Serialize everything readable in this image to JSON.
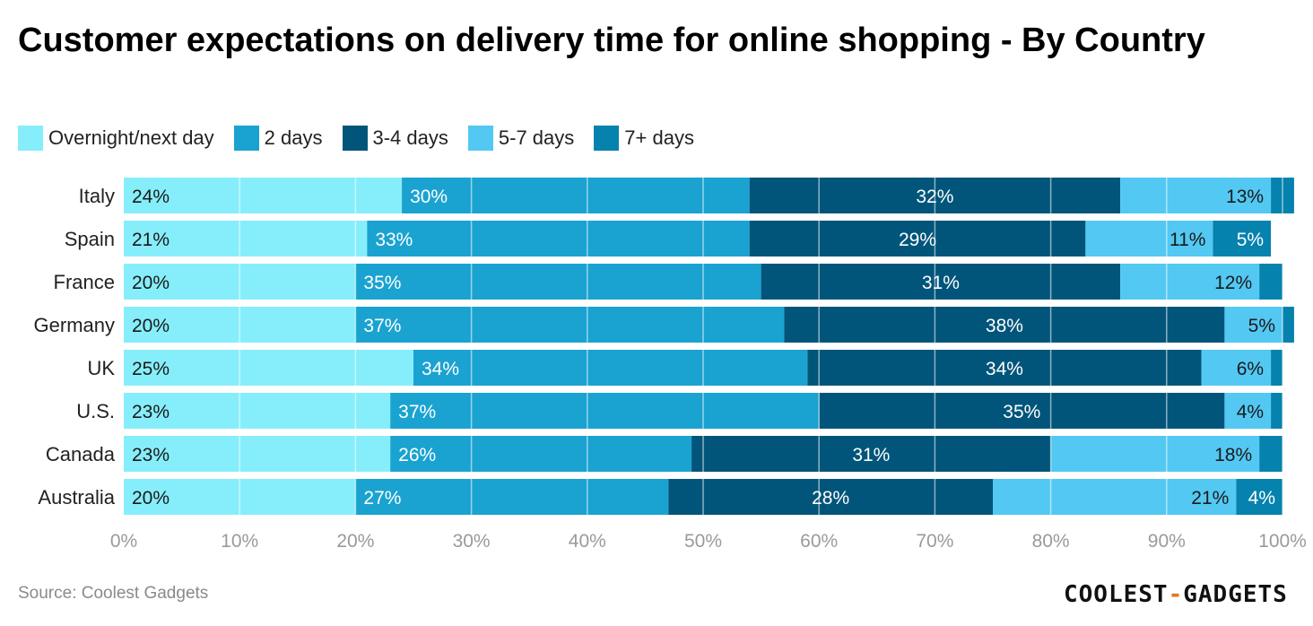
{
  "title": "Customer expectations on delivery time for online shopping - By Country",
  "source": "Source: Coolest Gadgets",
  "brand": {
    "left": "COOLEST",
    "sep": "-",
    "right": "GADGETS"
  },
  "colors": {
    "Overnight/next day": "#86eefb",
    "2 days": "#1aa3d1",
    "3-4 days": "#02557a",
    "5-7 days": "#53c8f3",
    "7+ days": "#0682ae",
    "grid": "#ffffff",
    "tick_label": "#9a9a9a"
  },
  "chart_data": {
    "type": "bar",
    "orientation": "horizontal",
    "stacked": true,
    "title": "Customer expectations on delivery time for online shopping - By Country",
    "categories": [
      "Italy",
      "Spain",
      "France",
      "Germany",
      "UK",
      "U.S.",
      "Canada",
      "Australia"
    ],
    "series": [
      {
        "name": "Overnight/next day",
        "values": [
          24,
          21,
          20,
          20,
          25,
          23,
          23,
          20
        ],
        "labels": [
          "24%",
          "21%",
          "20%",
          "20%",
          "25%",
          "23%",
          "23%",
          "20%"
        ]
      },
      {
        "name": "2 days",
        "values": [
          30,
          33,
          35,
          37,
          34,
          37,
          26,
          27
        ],
        "labels": [
          "30%",
          "33%",
          "35%",
          "37%",
          "34%",
          "37%",
          "26%",
          "27%"
        ]
      },
      {
        "name": "3-4 days",
        "values": [
          32,
          29,
          31,
          38,
          34,
          35,
          31,
          28
        ],
        "labels": [
          "32%",
          "29%",
          "31%",
          "38%",
          "34%",
          "35%",
          "31%",
          "28%"
        ]
      },
      {
        "name": "5-7 days",
        "values": [
          13,
          11,
          12,
          5,
          6,
          4,
          18,
          21
        ],
        "labels": [
          "13%",
          "11%",
          "12%",
          "5%",
          "6%",
          "4%",
          "18%",
          "21%"
        ]
      },
      {
        "name": "7+ days",
        "values": [
          2,
          5,
          2,
          1,
          1,
          1,
          2,
          4
        ],
        "labels": [
          "",
          "5%",
          "",
          "",
          "",
          "",
          "",
          "4%"
        ]
      }
    ],
    "xlim": [
      0,
      100
    ],
    "xticks": [
      "0%",
      "10%",
      "20%",
      "30%",
      "40%",
      "50%",
      "60%",
      "70%",
      "80%",
      "90%",
      "100%"
    ],
    "grid": true,
    "legend_position": "top-left"
  }
}
